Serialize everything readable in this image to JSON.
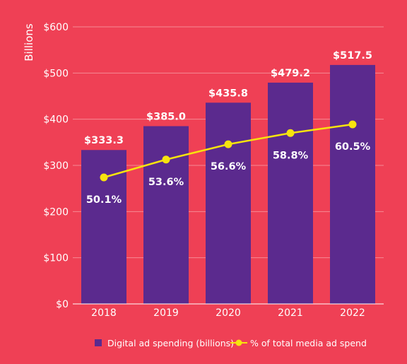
{
  "chart_data": {
    "type": "bar",
    "categories": [
      "2018",
      "2019",
      "2020",
      "2021",
      "2022"
    ],
    "ylabel": "Billions",
    "ylim": [
      0,
      600
    ],
    "yticks": [
      0,
      100,
      200,
      300,
      400,
      500,
      600
    ],
    "ytick_labels": [
      "$0",
      "$100",
      "$200",
      "$300",
      "$400",
      "$500",
      "$600"
    ],
    "grid": true,
    "legend_position": "bottom",
    "series": [
      {
        "name": "Digital ad spending (billions)",
        "type": "bar",
        "values": [
          333.3,
          385.0,
          435.8,
          479.2,
          517.5
        ],
        "labels": [
          "$333.3",
          "$385.0",
          "$435.8",
          "$479.2",
          "$517.5"
        ],
        "color": "#5b2a8e"
      },
      {
        "name": "% of total media ad spend",
        "type": "line",
        "values": [
          50.1,
          53.6,
          56.6,
          58.8,
          60.5
        ],
        "labels": [
          "50.1%",
          "53.6%",
          "56.6%",
          "58.8%",
          "60.5%"
        ],
        "color": "#f7e30e"
      }
    ]
  }
}
